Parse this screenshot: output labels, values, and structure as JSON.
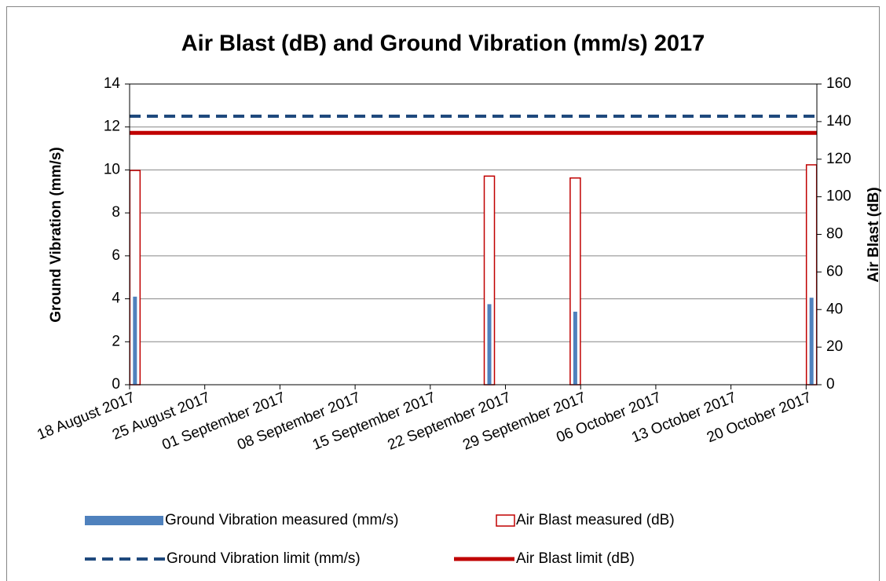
{
  "chart_data": {
    "type": "bar",
    "title": "Air Blast (dB) and Ground Vibration (mm/s) 2017",
    "y_label": "Ground Vibration  (mm/s)",
    "y2_label": "Air Blast  (dB)",
    "x": [
      "2017-08-18",
      "2017-09-20",
      "2017-09-28",
      "2017-10-20"
    ],
    "xlim": [
      "2017-08-18",
      "2017-10-21"
    ],
    "xticks": [
      {
        "value": "2017-08-18",
        "label": "18 August 2017"
      },
      {
        "value": "2017-08-25",
        "label": "25 August 2017"
      },
      {
        "value": "2017-09-01",
        "label": "01 September 2017"
      },
      {
        "value": "2017-09-08",
        "label": "08 September 2017"
      },
      {
        "value": "2017-09-15",
        "label": "15 September 2017"
      },
      {
        "value": "2017-09-22",
        "label": "22 September 2017"
      },
      {
        "value": "2017-09-29",
        "label": "29 September 2017"
      },
      {
        "value": "2017-10-06",
        "label": "06 October 2017"
      },
      {
        "value": "2017-10-13",
        "label": "13 October 2017"
      },
      {
        "value": "2017-10-20",
        "label": "20 October 2017"
      }
    ],
    "ylim": [
      0,
      14
    ],
    "yticks": [
      0,
      2,
      4,
      6,
      8,
      10,
      12,
      14
    ],
    "y2lim": [
      0,
      160
    ],
    "y2ticks": [
      0,
      20,
      40,
      60,
      80,
      100,
      120,
      140,
      160
    ],
    "grid": true,
    "series": [
      {
        "name": "Ground Vibration measured (mm/s)",
        "kind": "bar",
        "color": "#4f81bd",
        "values": [
          4.1,
          3.75,
          3.4,
          4.05
        ]
      },
      {
        "name": "Air Blast measured (dB)",
        "kind": "bar",
        "axis": "y2",
        "color": "#c00000",
        "values": [
          114,
          111,
          110,
          117
        ]
      },
      {
        "name": "Ground Vibration limit (mm/s)",
        "kind": "hline",
        "dash": true,
        "color": "#1f497d",
        "value": 12.5
      },
      {
        "name": "Air Blast limit (dB)",
        "kind": "hline",
        "axis": "y2",
        "color": "#c00000",
        "value": 134
      }
    ]
  }
}
